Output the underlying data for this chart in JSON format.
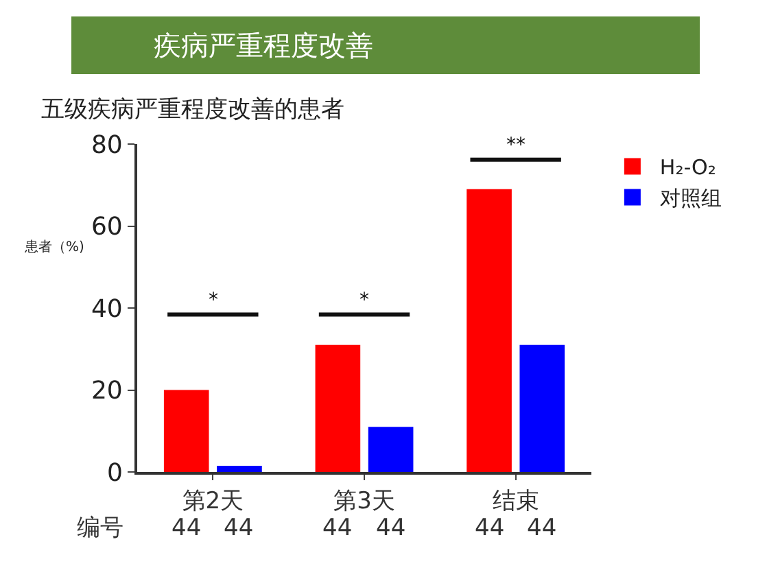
{
  "chart_data": {
    "type": "bar",
    "title": "疾病严重程度改善",
    "subtitle": "五级疾病严重程度改善的患者",
    "ylabel": "患者（%)",
    "categories": [
      "第2天",
      "第3天",
      "结束"
    ],
    "series": [
      {
        "name": "H₂-O₂",
        "color": "#ff0000",
        "values": [
          20,
          31,
          69
        ]
      },
      {
        "name": "对照组",
        "color": "#0000ff",
        "values": [
          1.5,
          11,
          31
        ]
      }
    ],
    "ylim": [
      0,
      80
    ],
    "yticks": [
      0,
      20,
      40,
      60,
      80
    ],
    "grid": false,
    "legend": "top right",
    "annotations": [
      "*",
      "*",
      "**",
      "编号",
      "44",
      "44",
      "44",
      "44",
      "44",
      "44"
    ]
  }
}
